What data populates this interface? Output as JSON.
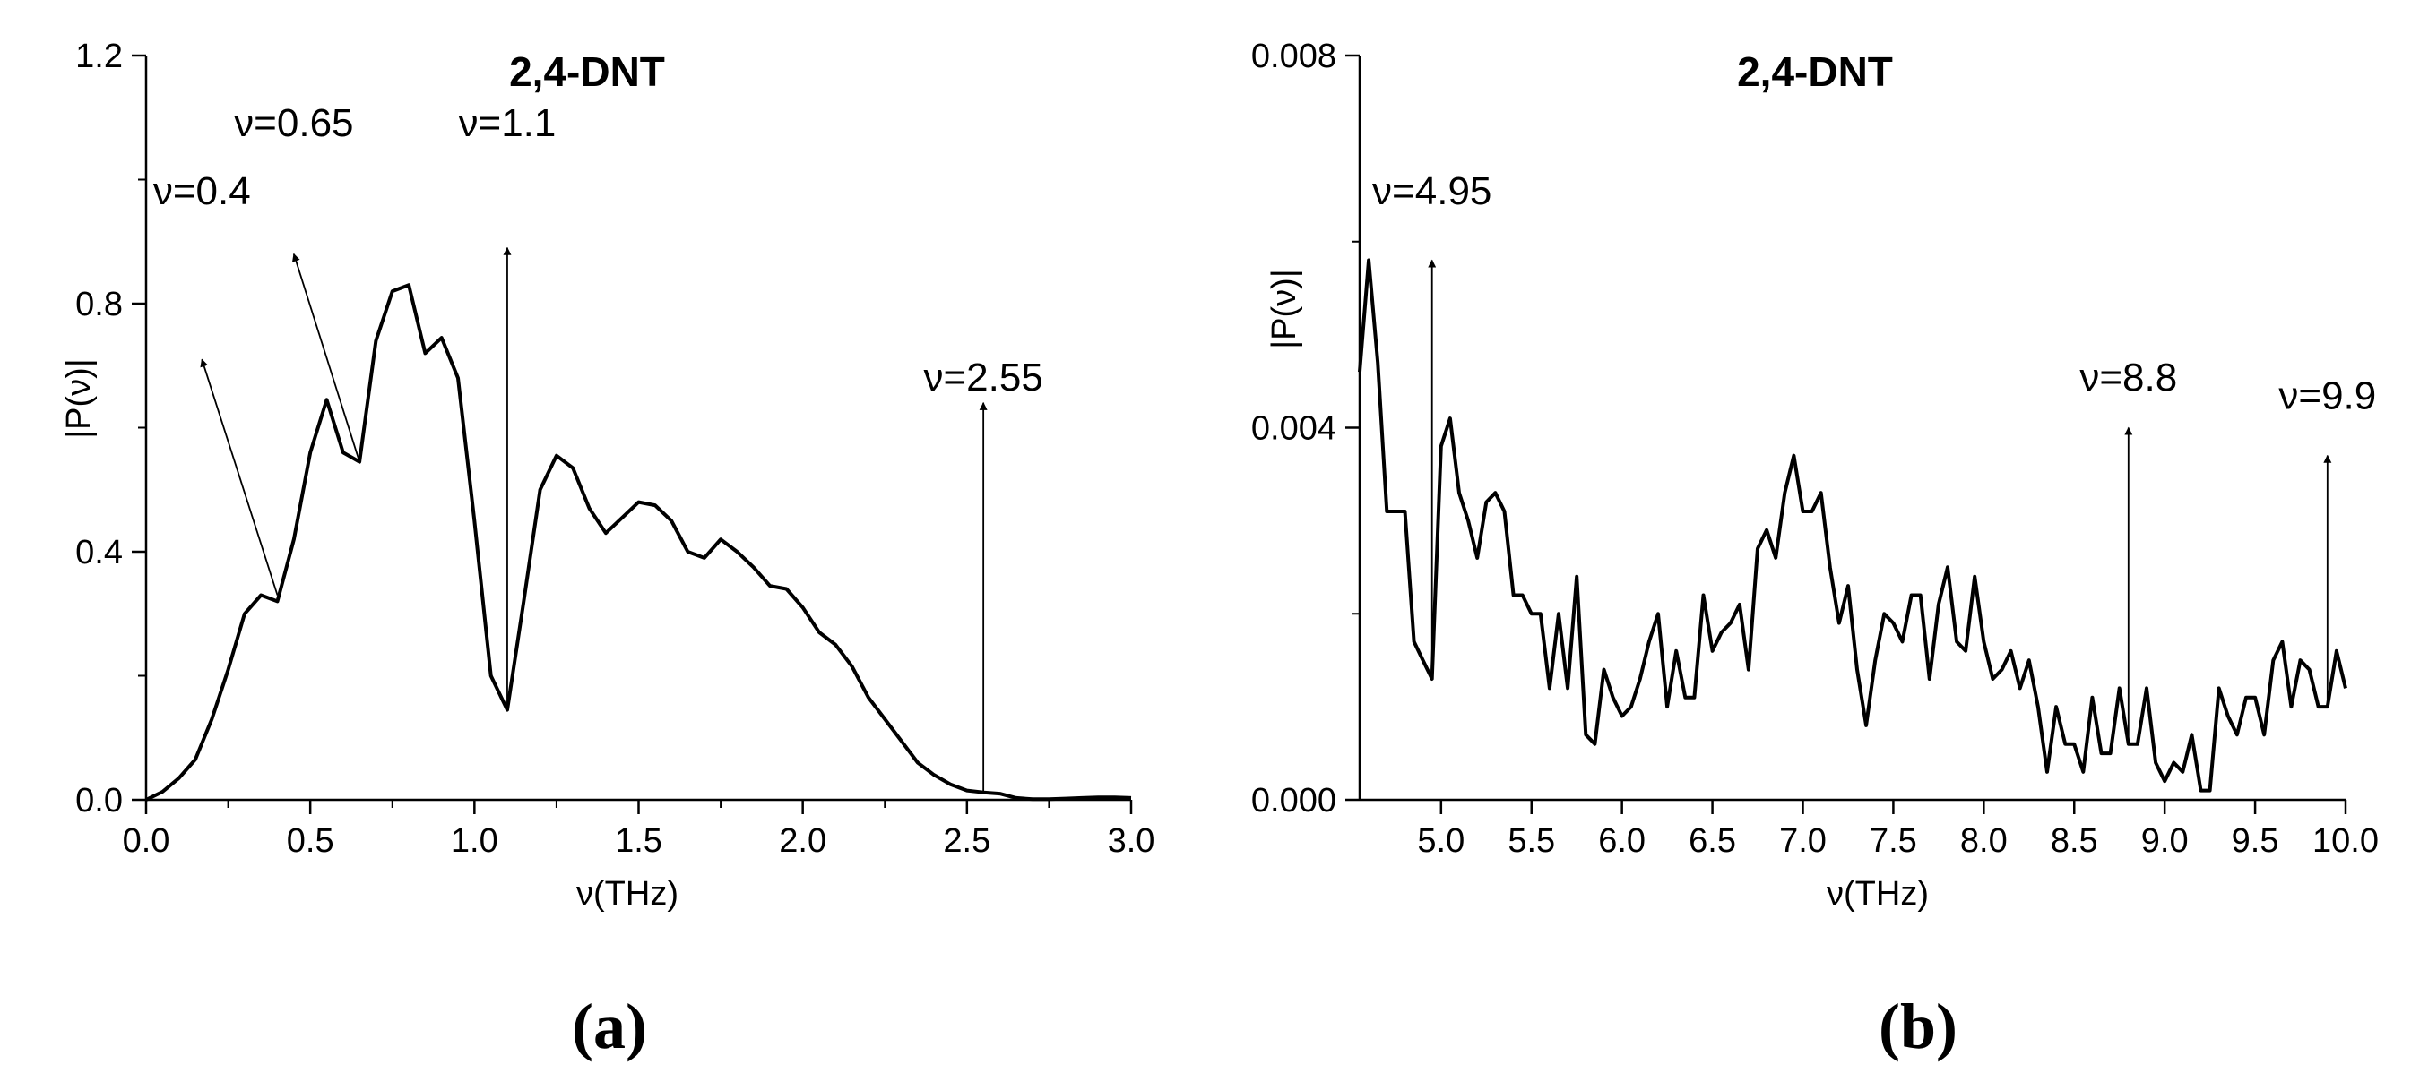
{
  "chart_data": [
    {
      "type": "line",
      "panel_label": "(a)",
      "title": "2,4-DNT",
      "xlabel": "ν(THz)",
      "ylabel": "|P(ν)|",
      "xlim": [
        0.0,
        3.0
      ],
      "ylim": [
        0.0,
        1.2
      ],
      "xticks": [
        0.0,
        0.5,
        1.0,
        1.5,
        2.0,
        2.5,
        3.0
      ],
      "xtick_labels": [
        "0.0",
        "0.5",
        "1.0",
        "1.5",
        "2.0",
        "2.5",
        "3.0"
      ],
      "yticks": [
        0.0,
        0.4,
        0.8,
        1.2
      ],
      "ytick_labels": [
        "0.0",
        "0.4",
        "0.8",
        "1.2"
      ],
      "grid": false,
      "series": [
        {
          "color": "#000000",
          "points": [
            [
              0.0,
              0.0
            ],
            [
              0.05,
              0.013
            ],
            [
              0.1,
              0.035
            ],
            [
              0.15,
              0.065
            ],
            [
              0.2,
              0.13
            ],
            [
              0.25,
              0.21
            ],
            [
              0.3,
              0.3
            ],
            [
              0.35,
              0.33
            ],
            [
              0.4,
              0.32
            ],
            [
              0.45,
              0.42
            ],
            [
              0.5,
              0.56
            ],
            [
              0.55,
              0.645
            ],
            [
              0.6,
              0.56
            ],
            [
              0.65,
              0.545
            ],
            [
              0.7,
              0.74
            ],
            [
              0.75,
              0.82
            ],
            [
              0.8,
              0.83
            ],
            [
              0.85,
              0.72
            ],
            [
              0.9,
              0.745
            ],
            [
              0.95,
              0.68
            ],
            [
              1.0,
              0.45
            ],
            [
              1.05,
              0.2
            ],
            [
              1.1,
              0.145
            ],
            [
              1.15,
              0.32
            ],
            [
              1.2,
              0.5
            ],
            [
              1.25,
              0.555
            ],
            [
              1.3,
              0.535
            ],
            [
              1.35,
              0.47
            ],
            [
              1.4,
              0.43
            ],
            [
              1.45,
              0.455
            ],
            [
              1.5,
              0.48
            ],
            [
              1.55,
              0.475
            ],
            [
              1.6,
              0.45
            ],
            [
              1.65,
              0.4
            ],
            [
              1.7,
              0.39
            ],
            [
              1.75,
              0.42
            ],
            [
              1.8,
              0.4
            ],
            [
              1.85,
              0.375
            ],
            [
              1.9,
              0.345
            ],
            [
              1.95,
              0.34
            ],
            [
              2.0,
              0.31
            ],
            [
              2.05,
              0.27
            ],
            [
              2.1,
              0.25
            ],
            [
              2.15,
              0.215
            ],
            [
              2.2,
              0.165
            ],
            [
              2.25,
              0.13
            ],
            [
              2.3,
              0.095
            ],
            [
              2.35,
              0.06
            ],
            [
              2.4,
              0.04
            ],
            [
              2.45,
              0.025
            ],
            [
              2.5,
              0.015
            ],
            [
              2.55,
              0.012
            ],
            [
              2.6,
              0.01
            ],
            [
              2.65,
              0.003
            ],
            [
              2.7,
              0.001
            ],
            [
              2.75,
              0.001
            ],
            [
              2.8,
              0.002
            ],
            [
              2.85,
              0.003
            ],
            [
              2.9,
              0.004
            ],
            [
              2.95,
              0.004
            ],
            [
              3.0,
              0.003
            ]
          ]
        }
      ],
      "annotations": [
        {
          "text": "ν=0.4",
          "x": 0.4,
          "y": 0.33,
          "label_x": 0.17,
          "label_y": 0.96,
          "arrow_tip_y": 0.71
        },
        {
          "text": "ν=0.65",
          "x": 0.65,
          "y": 0.545,
          "label_x": 0.45,
          "label_y": 1.07,
          "arrow_tip_y": 0.88
        },
        {
          "text": "ν=1.1",
          "x": 1.1,
          "y": 0.145,
          "label_x": 1.1,
          "label_y": 1.07,
          "arrow_tip_y": 0.89
        },
        {
          "text": "ν=2.55",
          "x": 2.55,
          "y": 0.012,
          "label_x": 2.55,
          "label_y": 0.66,
          "arrow_tip_y": 0.64
        }
      ]
    },
    {
      "type": "line",
      "panel_label": "(b)",
      "title": "2,4-DNT",
      "xlabel": "ν(THz)",
      "ylabel": "|P(ν)|",
      "xlim": [
        4.55,
        10.0
      ],
      "ylim": [
        0.0,
        0.008
      ],
      "xticks": [
        5.0,
        5.5,
        6.0,
        6.5,
        7.0,
        7.5,
        8.0,
        8.5,
        9.0,
        9.5,
        10.0
      ],
      "xtick_labels": [
        "5.0",
        "5.5",
        "6.0",
        "6.5",
        "7.0",
        "7.5",
        "8.0",
        "8.5",
        "9.0",
        "9.5",
        "10.0"
      ],
      "yticks": [
        0.0,
        0.004,
        0.008
      ],
      "ytick_labels": [
        "0.000",
        "0.004",
        "0.008"
      ],
      "grid": false,
      "series": [
        {
          "color": "#000000",
          "points": [
            [
              4.55,
              0.0046
            ],
            [
              4.6,
              0.0058
            ],
            [
              4.65,
              0.0047
            ],
            [
              4.7,
              0.0031
            ],
            [
              4.75,
              0.0031
            ],
            [
              4.8,
              0.0031
            ],
            [
              4.85,
              0.0017
            ],
            [
              4.9,
              0.0015
            ],
            [
              4.95,
              0.0013
            ],
            [
              5.0,
              0.0038
            ],
            [
              5.05,
              0.0041
            ],
            [
              5.1,
              0.0033
            ],
            [
              5.15,
              0.003
            ],
            [
              5.2,
              0.0026
            ],
            [
              5.25,
              0.0032
            ],
            [
              5.3,
              0.0033
            ],
            [
              5.35,
              0.0031
            ],
            [
              5.4,
              0.0022
            ],
            [
              5.45,
              0.0022
            ],
            [
              5.5,
              0.002
            ],
            [
              5.55,
              0.002
            ],
            [
              5.6,
              0.0012
            ],
            [
              5.65,
              0.002
            ],
            [
              5.7,
              0.0012
            ],
            [
              5.75,
              0.0024
            ],
            [
              5.8,
              0.0007
            ],
            [
              5.85,
              0.0006
            ],
            [
              5.9,
              0.0014
            ],
            [
              5.95,
              0.0011
            ],
            [
              6.0,
              0.0009
            ],
            [
              6.05,
              0.001
            ],
            [
              6.1,
              0.0013
            ],
            [
              6.15,
              0.0017
            ],
            [
              6.2,
              0.002
            ],
            [
              6.25,
              0.001
            ],
            [
              6.3,
              0.0016
            ],
            [
              6.35,
              0.0011
            ],
            [
              6.4,
              0.0011
            ],
            [
              6.45,
              0.0022
            ],
            [
              6.5,
              0.0016
            ],
            [
              6.55,
              0.0018
            ],
            [
              6.6,
              0.0019
            ],
            [
              6.65,
              0.0021
            ],
            [
              6.7,
              0.0014
            ],
            [
              6.75,
              0.0027
            ],
            [
              6.8,
              0.0029
            ],
            [
              6.85,
              0.0026
            ],
            [
              6.9,
              0.0033
            ],
            [
              6.95,
              0.0037
            ],
            [
              7.0,
              0.0031
            ],
            [
              7.05,
              0.0031
            ],
            [
              7.1,
              0.0033
            ],
            [
              7.15,
              0.0025
            ],
            [
              7.2,
              0.0019
            ],
            [
              7.25,
              0.0023
            ],
            [
              7.3,
              0.0014
            ],
            [
              7.35,
              0.0008
            ],
            [
              7.4,
              0.0015
            ],
            [
              7.45,
              0.002
            ],
            [
              7.5,
              0.0019
            ],
            [
              7.55,
              0.0017
            ],
            [
              7.6,
              0.0022
            ],
            [
              7.65,
              0.0022
            ],
            [
              7.7,
              0.0013
            ],
            [
              7.75,
              0.0021
            ],
            [
              7.8,
              0.0025
            ],
            [
              7.85,
              0.0017
            ],
            [
              7.9,
              0.0016
            ],
            [
              7.95,
              0.0024
            ],
            [
              8.0,
              0.0017
            ],
            [
              8.05,
              0.0013
            ],
            [
              8.1,
              0.0014
            ],
            [
              8.15,
              0.0016
            ],
            [
              8.2,
              0.0012
            ],
            [
              8.25,
              0.0015
            ],
            [
              8.3,
              0.001
            ],
            [
              8.35,
              0.0003
            ],
            [
              8.4,
              0.001
            ],
            [
              8.45,
              0.0006
            ],
            [
              8.5,
              0.0006
            ],
            [
              8.55,
              0.0003
            ],
            [
              8.6,
              0.0011
            ],
            [
              8.65,
              0.0005
            ],
            [
              8.7,
              0.0005
            ],
            [
              8.75,
              0.0012
            ],
            [
              8.8,
              0.0006
            ],
            [
              8.85,
              0.0006
            ],
            [
              8.9,
              0.0012
            ],
            [
              8.95,
              0.0004
            ],
            [
              9.0,
              0.0002
            ],
            [
              9.05,
              0.0004
            ],
            [
              9.1,
              0.0003
            ],
            [
              9.15,
              0.0007
            ],
            [
              9.2,
              0.0001
            ],
            [
              9.25,
              0.0001
            ],
            [
              9.3,
              0.0012
            ],
            [
              9.35,
              0.0009
            ],
            [
              9.4,
              0.0007
            ],
            [
              9.45,
              0.0011
            ],
            [
              9.5,
              0.0011
            ],
            [
              9.55,
              0.0007
            ],
            [
              9.6,
              0.0015
            ],
            [
              9.65,
              0.0017
            ],
            [
              9.7,
              0.001
            ],
            [
              9.75,
              0.0015
            ],
            [
              9.8,
              0.0014
            ],
            [
              9.85,
              0.001
            ],
            [
              9.9,
              0.001
            ],
            [
              9.95,
              0.0016
            ],
            [
              10.0,
              0.0012
            ]
          ]
        }
      ],
      "annotations": [
        {
          "text": "ν=4.95",
          "x": 4.95,
          "y": 0.0013,
          "label_x": 4.95,
          "label_y": 0.0064,
          "arrow_tip_y": 0.0058
        },
        {
          "text": "ν=8.8",
          "x": 8.8,
          "y": 0.0006,
          "label_x": 8.8,
          "label_y": 0.0044,
          "arrow_tip_y": 0.004
        },
        {
          "text": "ν=9.9",
          "x": 9.9,
          "y": 0.001,
          "label_x": 9.9,
          "label_y": 0.0042,
          "arrow_tip_y": 0.0037
        }
      ]
    }
  ]
}
